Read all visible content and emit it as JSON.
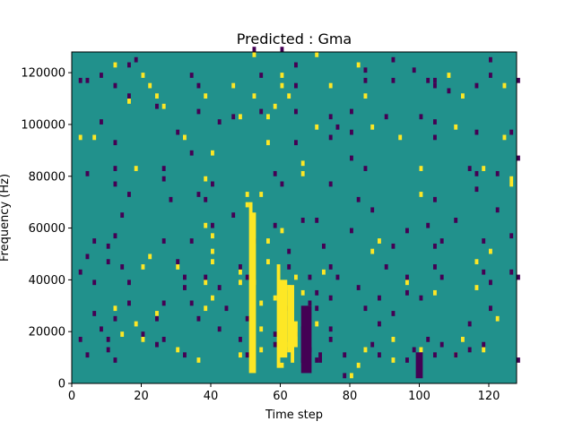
{
  "chart_data": {
    "type": "heatmap",
    "title": "Predicted : Gma",
    "xlabel": "Time step",
    "ylabel": "Frequency (Hz)",
    "xlim": [
      0,
      128
    ],
    "ylim": [
      0,
      128000
    ],
    "x_ticks": [
      0,
      20,
      40,
      60,
      80,
      100,
      120
    ],
    "y_ticks": [
      0,
      20000,
      40000,
      60000,
      80000,
      100000,
      120000
    ],
    "x_tick_labels": [
      "0",
      "20",
      "40",
      "60",
      "80",
      "100",
      "120"
    ],
    "y_tick_labels": [
      "0",
      "20000",
      "40000",
      "60000",
      "80000",
      "100000",
      "120000"
    ],
    "grid": false,
    "colors": {
      "background": "#21918c",
      "high": "#fde725",
      "low": "#440154"
    },
    "cell_height": 2000,
    "high_cells": [
      [
        52,
        126000
      ],
      [
        70,
        126000
      ],
      [
        82,
        122000
      ],
      [
        12,
        122000
      ],
      [
        20,
        118000
      ],
      [
        60,
        118000
      ],
      [
        108,
        118000
      ],
      [
        22,
        114000
      ],
      [
        46,
        114000
      ],
      [
        60,
        114000
      ],
      [
        74,
        114000
      ],
      [
        124,
        114000
      ],
      [
        24,
        110000
      ],
      [
        38,
        110000
      ],
      [
        52,
        110000
      ],
      [
        62,
        110000
      ],
      [
        84,
        110000
      ],
      [
        112,
        110000
      ],
      [
        16,
        108000
      ],
      [
        26,
        106000
      ],
      [
        58,
        106000
      ],
      [
        48,
        102000
      ],
      [
        56,
        102000
      ],
      [
        86,
        98000
      ],
      [
        70,
        98000
      ],
      [
        110,
        98000
      ],
      [
        32,
        94000
      ],
      [
        94,
        94000
      ],
      [
        124,
        94000
      ],
      [
        56,
        92000
      ],
      [
        6,
        94000
      ],
      [
        2,
        94000
      ],
      [
        40,
        88000
      ],
      [
        66,
        84000
      ],
      [
        18,
        82000
      ],
      [
        100,
        82000
      ],
      [
        118,
        82000
      ],
      [
        66,
        80000
      ],
      [
        38,
        78000
      ],
      [
        126,
        78000
      ],
      [
        126,
        76000
      ],
      [
        50,
        72000
      ],
      [
        100,
        72000
      ],
      [
        54,
        72000
      ],
      [
        50,
        68000
      ],
      [
        38,
        60000
      ],
      [
        40,
        56000
      ],
      [
        60,
        58000
      ],
      [
        88,
        54000
      ],
      [
        40,
        50000
      ],
      [
        86,
        50000
      ],
      [
        120,
        50000
      ],
      [
        22,
        48000
      ],
      [
        40,
        46000
      ],
      [
        56,
        46000
      ],
      [
        116,
        46000
      ],
      [
        30,
        44000
      ],
      [
        20,
        44000
      ],
      [
        48,
        42000
      ],
      [
        64,
        40000
      ],
      [
        72,
        42000
      ],
      [
        38,
        38000
      ],
      [
        48,
        38000
      ],
      [
        96,
        38000
      ],
      [
        62,
        36000
      ],
      [
        116,
        36000
      ],
      [
        66,
        34000
      ],
      [
        40,
        32000
      ],
      [
        58,
        32000
      ],
      [
        38,
        28000
      ],
      [
        12,
        28000
      ],
      [
        24,
        26000
      ],
      [
        60,
        26000
      ],
      [
        104,
        34000
      ],
      [
        18,
        22000
      ],
      [
        122,
        24000
      ],
      [
        60,
        22000
      ],
      [
        14,
        18000
      ],
      [
        92,
        16000
      ],
      [
        112,
        16000
      ],
      [
        20,
        16000
      ],
      [
        62,
        14000
      ],
      [
        84,
        12000
      ],
      [
        30,
        12000
      ],
      [
        100,
        12000
      ],
      [
        110,
        10000
      ],
      [
        92,
        8000
      ],
      [
        48,
        10000
      ],
      [
        36,
        8000
      ],
      [
        118,
        12000
      ],
      [
        54,
        12000
      ],
      [
        82,
        6000
      ],
      [
        60,
        6000
      ],
      [
        80,
        2000
      ],
      [
        52,
        38000
      ],
      [
        54,
        30000
      ],
      [
        54,
        20000
      ],
      [
        56,
        54000
      ],
      [
        70,
        22000
      ]
    ],
    "high_runs": [
      [
        51,
        52,
        4000,
        70000
      ],
      [
        52,
        53,
        4000,
        66000
      ],
      [
        59,
        60,
        6000,
        46000
      ],
      [
        60,
        62,
        10000,
        40000
      ],
      [
        62,
        64,
        12000,
        38000
      ],
      [
        63,
        64,
        8000,
        20000
      ],
      [
        64,
        65,
        14000,
        24000
      ]
    ],
    "low_cells": [
      [
        52,
        128000
      ],
      [
        60,
        128000
      ],
      [
        18,
        124000
      ],
      [
        92,
        124000
      ],
      [
        120,
        124000
      ],
      [
        16,
        122000
      ],
      [
        64,
        122000
      ],
      [
        84,
        120000
      ],
      [
        8,
        118000
      ],
      [
        34,
        118000
      ],
      [
        54,
        118000
      ],
      [
        98,
        120000
      ],
      [
        2,
        116000
      ],
      [
        4,
        116000
      ],
      [
        84,
        116000
      ],
      [
        92,
        116000
      ],
      [
        102,
        116000
      ],
      [
        104,
        116000
      ],
      [
        120,
        118000
      ],
      [
        12,
        114000
      ],
      [
        116,
        114000
      ],
      [
        128,
        116000
      ],
      [
        64,
        114000
      ],
      [
        36,
        114000
      ],
      [
        104,
        114000
      ],
      [
        108,
        112000
      ],
      [
        16,
        110000
      ],
      [
        24,
        106000
      ],
      [
        54,
        104000
      ],
      [
        64,
        104000
      ],
      [
        36,
        104000
      ],
      [
        46,
        102000
      ],
      [
        80,
        104000
      ],
      [
        74,
        102000
      ],
      [
        90,
        102000
      ],
      [
        100,
        102000
      ],
      [
        104,
        100000
      ],
      [
        8,
        100000
      ],
      [
        42,
        100000
      ],
      [
        76,
        98000
      ],
      [
        80,
        96000
      ],
      [
        116,
        96000
      ],
      [
        30,
        96000
      ],
      [
        74,
        94000
      ],
      [
        104,
        94000
      ],
      [
        126,
        96000
      ],
      [
        64,
        92000
      ],
      [
        12,
        92000
      ],
      [
        34,
        88000
      ],
      [
        80,
        86000
      ],
      [
        128,
        86000
      ],
      [
        84,
        82000
      ],
      [
        114,
        82000
      ],
      [
        116,
        80000
      ],
      [
        26,
        82000
      ],
      [
        26,
        78000
      ],
      [
        122,
        80000
      ],
      [
        12,
        82000
      ],
      [
        58,
        80000
      ],
      [
        4,
        80000
      ],
      [
        40,
        76000
      ],
      [
        60,
        76000
      ],
      [
        74,
        76000
      ],
      [
        12,
        76000
      ],
      [
        36,
        72000
      ],
      [
        116,
        74000
      ],
      [
        16,
        72000
      ],
      [
        38,
        70000
      ],
      [
        82,
        70000
      ],
      [
        104,
        70000
      ],
      [
        28,
        70000
      ],
      [
        86,
        66000
      ],
      [
        122,
        66000
      ],
      [
        14,
        64000
      ],
      [
        46,
        64000
      ],
      [
        66,
        62000
      ],
      [
        70,
        62000
      ],
      [
        110,
        62000
      ],
      [
        102,
        60000
      ],
      [
        40,
        60000
      ],
      [
        58,
        60000
      ],
      [
        80,
        58000
      ],
      [
        96,
        58000
      ],
      [
        52,
        54000
      ],
      [
        106,
        54000
      ],
      [
        6,
        54000
      ],
      [
        10,
        52000
      ],
      [
        12,
        56000
      ],
      [
        26,
        54000
      ],
      [
        34,
        54000
      ],
      [
        62,
        50000
      ],
      [
        72,
        52000
      ],
      [
        92,
        52000
      ],
      [
        104,
        52000
      ],
      [
        118,
        54000
      ],
      [
        126,
        56000
      ],
      [
        4,
        48000
      ],
      [
        10,
        46000
      ],
      [
        14,
        44000
      ],
      [
        30,
        46000
      ],
      [
        48,
        44000
      ],
      [
        62,
        44000
      ],
      [
        74,
        44000
      ],
      [
        90,
        44000
      ],
      [
        126,
        42000
      ],
      [
        118,
        42000
      ],
      [
        104,
        44000
      ],
      [
        2,
        42000
      ],
      [
        32,
        40000
      ],
      [
        38,
        40000
      ],
      [
        50,
        40000
      ],
      [
        68,
        40000
      ],
      [
        76,
        40000
      ],
      [
        96,
        40000
      ],
      [
        106,
        40000
      ],
      [
        128,
        40000
      ],
      [
        6,
        38000
      ],
      [
        16,
        38000
      ],
      [
        32,
        36000
      ],
      [
        82,
        36000
      ],
      [
        70,
        34000
      ],
      [
        96,
        34000
      ],
      [
        74,
        32000
      ],
      [
        88,
        32000
      ],
      [
        100,
        32000
      ],
      [
        16,
        30000
      ],
      [
        26,
        30000
      ],
      [
        34,
        30000
      ],
      [
        44,
        28000
      ],
      [
        6,
        26000
      ],
      [
        24,
        24000
      ],
      [
        68,
        30000
      ],
      [
        70,
        28000
      ],
      [
        62,
        28000
      ],
      [
        84,
        28000
      ],
      [
        92,
        26000
      ],
      [
        120,
        28000
      ],
      [
        12,
        24000
      ],
      [
        36,
        24000
      ],
      [
        50,
        24000
      ],
      [
        88,
        22000
      ],
      [
        74,
        20000
      ],
      [
        114,
        22000
      ],
      [
        8,
        20000
      ],
      [
        20,
        18000
      ],
      [
        58,
        18000
      ],
      [
        64,
        18000
      ],
      [
        42,
        20000
      ],
      [
        26,
        16000
      ],
      [
        2,
        16000
      ],
      [
        10,
        16000
      ],
      [
        102,
        16000
      ],
      [
        74,
        16000
      ],
      [
        86,
        14000
      ],
      [
        48,
        16000
      ],
      [
        106,
        14000
      ],
      [
        58,
        14000
      ],
      [
        24,
        14000
      ],
      [
        118,
        14000
      ],
      [
        68,
        12000
      ],
      [
        98,
        12000
      ],
      [
        114,
        12000
      ],
      [
        10,
        12000
      ],
      [
        78,
        10000
      ],
      [
        4,
        10000
      ],
      [
        32,
        10000
      ],
      [
        50,
        10000
      ],
      [
        66,
        8000
      ],
      [
        70,
        8000
      ],
      [
        96,
        8000
      ],
      [
        110,
        10000
      ],
      [
        12,
        8000
      ],
      [
        88,
        10000
      ],
      [
        128,
        8000
      ],
      [
        104,
        10000
      ],
      [
        78,
        2000
      ],
      [
        120,
        38000
      ],
      [
        42,
        36000
      ]
    ],
    "low_runs": [
      [
        66,
        69,
        4000,
        30000
      ],
      [
        71,
        72,
        8000,
        12000
      ],
      [
        99,
        101,
        2000,
        12000
      ],
      [
        66,
        67,
        8000,
        22000
      ]
    ]
  }
}
